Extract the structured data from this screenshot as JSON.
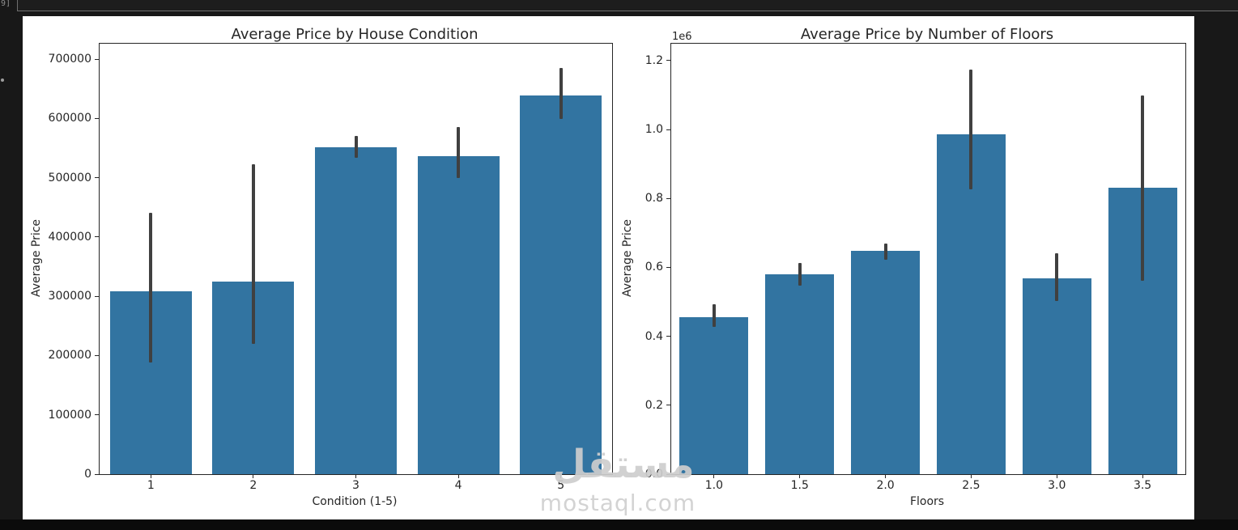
{
  "notebook": {
    "execution_label": "9]"
  },
  "watermark": {
    "arabic": "مستقل",
    "latin": "mostaql.com"
  },
  "colors": {
    "bar": "#3274a1",
    "error_bar": "#404040",
    "axis_text": "#262626",
    "figure_background": "#ffffff",
    "page_background": "#181818"
  },
  "chart_data": [
    {
      "type": "bar",
      "title": "Average Price by House Condition",
      "xlabel": "Condition (1-5)",
      "ylabel": "Average Price",
      "categories": [
        "1",
        "2",
        "3",
        "4",
        "5"
      ],
      "values": [
        308000,
        325000,
        552000,
        536000,
        639000
      ],
      "error_low": [
        188000,
        220000,
        534000,
        500000,
        599000
      ],
      "error_high": [
        441000,
        522000,
        570000,
        586000,
        685000
      ],
      "ylim": [
        0,
        726000
      ],
      "yticks": [
        0,
        100000,
        200000,
        300000,
        400000,
        500000,
        600000,
        700000
      ],
      "ytick_labels": [
        "0",
        "100000",
        "200000",
        "300000",
        "400000",
        "500000",
        "600000",
        "700000"
      ],
      "grid": "off",
      "legend": "none"
    },
    {
      "type": "bar",
      "title": "Average Price by Number of Floors",
      "xlabel": "Floors",
      "ylabel": "Average Price",
      "offset_label": "1e6",
      "categories": [
        "1.0",
        "1.5",
        "2.0",
        "2.5",
        "3.0",
        "3.5"
      ],
      "values": [
        455000,
        580000,
        648000,
        985000,
        567000,
        830000
      ],
      "error_low": [
        427000,
        546000,
        623000,
        827000,
        503000,
        560000
      ],
      "error_high": [
        494000,
        613000,
        670000,
        1175000,
        640000,
        1098000
      ],
      "ylim": [
        0,
        1249000
      ],
      "yticks": [
        0,
        200000,
        400000,
        600000,
        800000,
        1000000,
        1200000
      ],
      "ytick_labels": [
        "0.0",
        "0.2",
        "0.4",
        "0.6",
        "0.8",
        "1.0",
        "1.2"
      ],
      "grid": "off",
      "legend": "none"
    }
  ]
}
